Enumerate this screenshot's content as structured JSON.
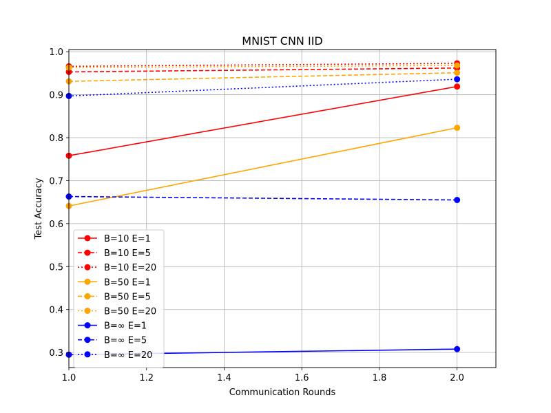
{
  "chart_data": {
    "type": "line",
    "title": "MNIST CNN IID",
    "xlabel": "Communication Rounds",
    "ylabel": "Test Accuracy",
    "xlim": [
      1.0,
      2.1
    ],
    "ylim": [
      0.265,
      1.005
    ],
    "xticks": [
      "1.0",
      "1.2",
      "1.4",
      "1.6",
      "1.8",
      "2.0"
    ],
    "yticks": [
      "0.3",
      "0.4",
      "0.5",
      "0.6",
      "0.7",
      "0.8",
      "0.9",
      "1.0"
    ],
    "grid": true,
    "legend_position": "lower-left",
    "x": [
      1,
      2
    ],
    "series": [
      {
        "name": "B=10 E=1",
        "color": "#ff0000",
        "dash": "solid",
        "values": [
          0.758,
          0.919
        ]
      },
      {
        "name": "B=10 E=5",
        "color": "#ff0000",
        "dash": "dashed",
        "values": [
          0.953,
          0.962
        ]
      },
      {
        "name": "B=10 E=20",
        "color": "#ff0000",
        "dash": "dotted",
        "values": [
          0.966,
          0.973
        ]
      },
      {
        "name": "B=50 E=1",
        "color": "#ffa500",
        "dash": "solid",
        "values": [
          0.641,
          0.823
        ]
      },
      {
        "name": "B=50 E=5",
        "color": "#ffa500",
        "dash": "dashed",
        "values": [
          0.931,
          0.951
        ]
      },
      {
        "name": "B=50 E=20",
        "color": "#ffa500",
        "dash": "dotted",
        "values": [
          0.963,
          0.968
        ]
      },
      {
        "name": "B=∞ E=1",
        "color": "#0000ff",
        "dash": "solid",
        "values": [
          0.295,
          0.308
        ]
      },
      {
        "name": "B=∞ E=5",
        "color": "#0000ff",
        "dash": "dashed",
        "values": [
          0.663,
          0.655
        ]
      },
      {
        "name": "B=∞ E=20",
        "color": "#0000ff",
        "dash": "dotted",
        "values": [
          0.897,
          0.936
        ]
      }
    ]
  }
}
